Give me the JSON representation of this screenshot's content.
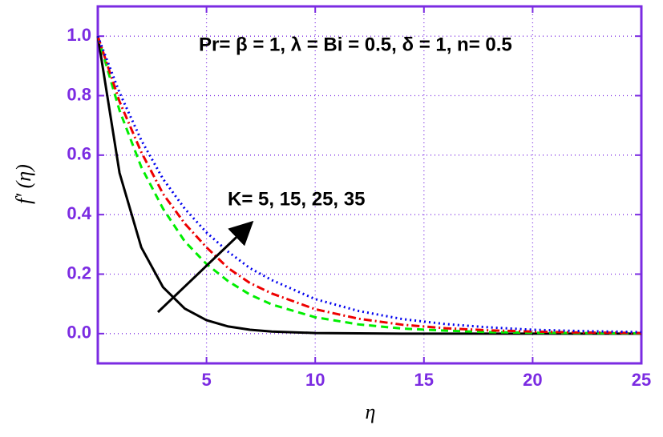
{
  "chart_data": {
    "type": "line",
    "xlabel": "η",
    "ylabel": "f′ (η)",
    "annotations": [
      "Pr= β = 1, λ = Bi = 0.5,  δ = 1,  n= 0.5",
      "K= 5, 15, 25, 35"
    ],
    "x": [
      0,
      1,
      2,
      3,
      4,
      5,
      6,
      7,
      8,
      10,
      12,
      14,
      16,
      18,
      20,
      22,
      25
    ],
    "series": [
      {
        "color": "#000000",
        "dash": "none",
        "values": [
          1,
          0.54,
          0.29,
          0.156,
          0.084,
          0.045,
          0.024,
          0.013,
          0.007,
          0.002,
          0.001,
          0,
          0,
          0,
          0,
          0,
          0
        ]
      },
      {
        "color": "#00ee00",
        "dash": "9 6",
        "values": [
          1,
          0.75,
          0.56,
          0.42,
          0.31,
          0.234,
          0.176,
          0.131,
          0.098,
          0.055,
          0.031,
          0.017,
          0.01,
          0.005,
          0.003,
          0.002,
          0.001
        ]
      },
      {
        "color": "#ee0000",
        "dash": "10 4 2 4",
        "values": [
          1,
          0.78,
          0.61,
          0.47,
          0.37,
          0.29,
          0.22,
          0.17,
          0.135,
          0.082,
          0.05,
          0.03,
          0.018,
          0.011,
          0.007,
          0.004,
          0.002
        ]
      },
      {
        "color": "#0000ee",
        "dash": "2 4",
        "values": [
          1,
          0.81,
          0.65,
          0.52,
          0.42,
          0.34,
          0.275,
          0.22,
          0.18,
          0.116,
          0.076,
          0.049,
          0.032,
          0.021,
          0.013,
          0.009,
          0.005
        ]
      }
    ],
    "xlim": [
      0,
      25
    ],
    "ylim": [
      -0.1,
      1.1
    ],
    "xticks": [
      5,
      10,
      15,
      20,
      25
    ],
    "yticks": [
      {
        "value": 0,
        "label": "0.0"
      },
      {
        "value": 0.2,
        "label": "0.2"
      },
      {
        "value": 0.4,
        "label": "0.4"
      },
      {
        "value": 0.6,
        "label": "0.6"
      },
      {
        "value": 0.8,
        "label": "0.8"
      },
      {
        "value": 1,
        "label": "1.0"
      }
    ],
    "grid": true,
    "axis_color": "#7b2be2"
  }
}
